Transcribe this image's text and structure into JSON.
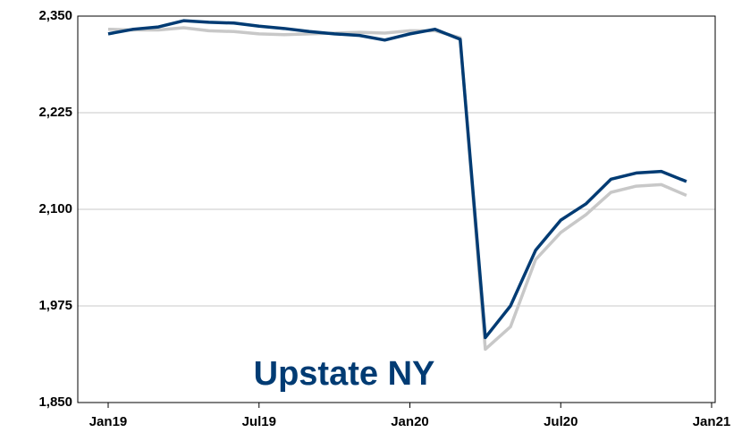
{
  "chart_data": {
    "type": "line",
    "annotation": "Upstate NY",
    "categories": [
      "Jan19",
      null,
      null,
      null,
      null,
      null,
      "Jul19",
      null,
      null,
      null,
      null,
      null,
      "Jan20",
      null,
      null,
      null,
      null,
      null,
      "Jul20",
      null,
      null,
      null,
      null,
      null,
      "Jan21"
    ],
    "series": [
      {
        "color": "#003b73",
        "values": [
          2327,
          2333,
          2336,
          2344,
          2342,
          2341,
          2337,
          2334,
          2330,
          2327,
          2325,
          2319,
          2327,
          2333,
          2320,
          1934,
          1975,
          2047,
          2086,
          2107,
          2139,
          2147,
          2149,
          2136,
          null
        ]
      },
      {
        "color": "#c8c8c8",
        "values": [
          2333,
          2332,
          2332,
          2335,
          2331,
          2330,
          2327,
          2326,
          2327,
          2328,
          2329,
          2328,
          2331,
          2331,
          2322,
          1919,
          1948,
          2035,
          2070,
          2093,
          2122,
          2130,
          2132,
          2118,
          null
        ]
      }
    ],
    "ylim": [
      1850,
      2350
    ],
    "yticks": [
      {
        "value": 1850,
        "label": "1,850"
      },
      {
        "value": 1975,
        "label": "1,975"
      },
      {
        "value": 2100,
        "label": "2,100"
      },
      {
        "value": 2225,
        "label": "2,225"
      },
      {
        "value": 2350,
        "label": "2,350"
      }
    ],
    "grid": true
  }
}
